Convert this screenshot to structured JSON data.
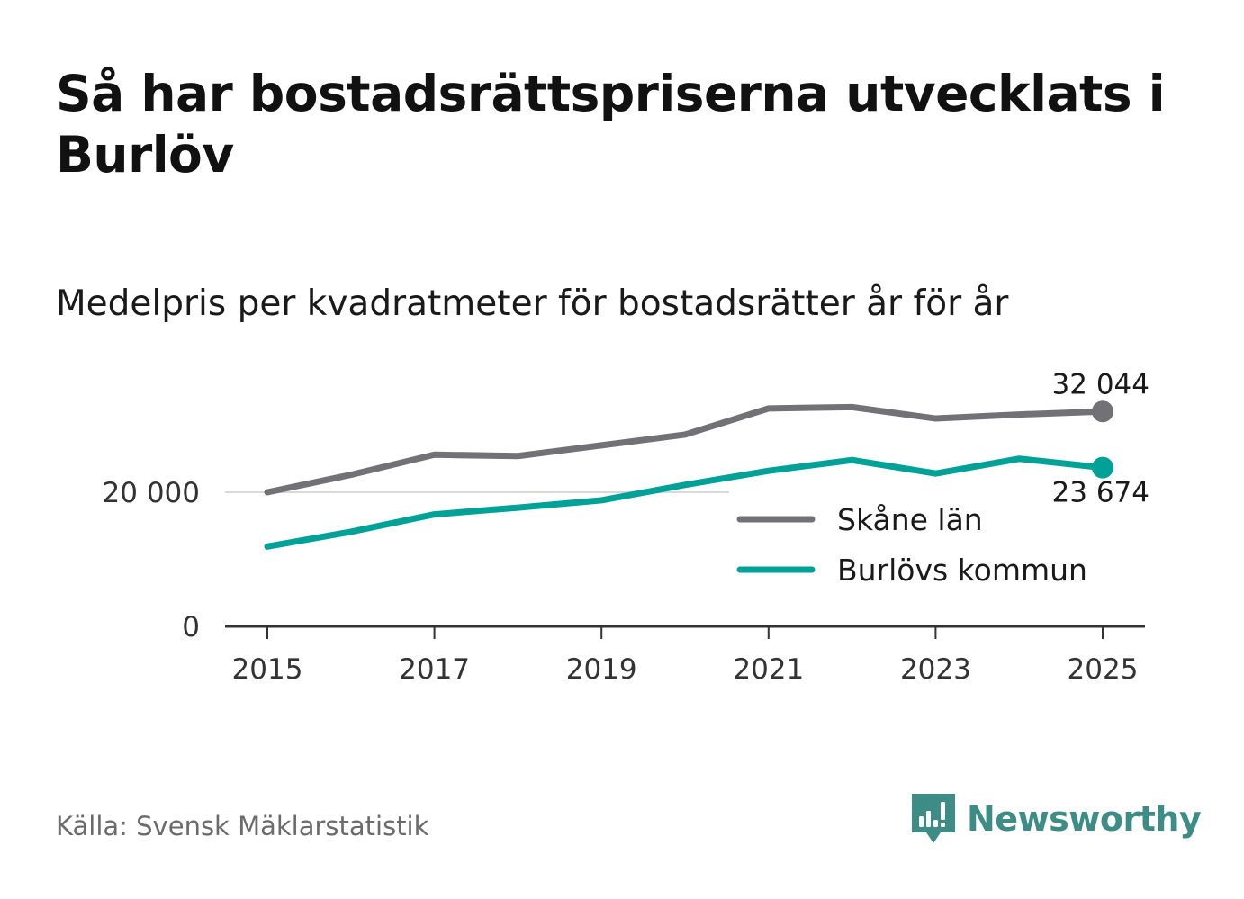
{
  "title": "Så har bostadsrättspriserna utvecklats i Burlöv",
  "subtitle": "Medelpris per kvadratmeter för bostadsrätter år för år",
  "source": "Källa: Svensk Mäklarstatistik",
  "brand": {
    "name": "Newsworthy",
    "icon": "newsworthy-logo-icon",
    "color": "#3e8c86"
  },
  "chart_data": {
    "type": "line",
    "title": "Så har bostadsrättspriserna utvecklats i Burlöv",
    "subtitle": "Medelpris per kvadratmeter för bostadsrätter år för år",
    "x": [
      2015,
      2016,
      2017,
      2018,
      2019,
      2020,
      2021,
      2022,
      2023,
      2024,
      2025
    ],
    "xticks": [
      2015,
      2017,
      2019,
      2021,
      2023,
      2025
    ],
    "xtick_labels": [
      "2015",
      "2017",
      "2019",
      "2021",
      "2023",
      "2025"
    ],
    "yticks": [
      0,
      20000
    ],
    "ytick_labels": [
      "0",
      "20 000"
    ],
    "ylim": [
      0,
      35000
    ],
    "xlabel": "",
    "ylabel": "",
    "legend_position": "right",
    "series": [
      {
        "name": "Skåne län",
        "color": "#727175",
        "values": [
          20000,
          22600,
          25600,
          25400,
          27000,
          28600,
          32500,
          32700,
          31000,
          31600,
          32044
        ],
        "end_label": "32 044"
      },
      {
        "name": "Burlövs kommun",
        "color": "#00a196",
        "values": [
          11900,
          14100,
          16700,
          17700,
          18800,
          21100,
          23200,
          24800,
          22800,
          25000,
          23674
        ],
        "end_label": "23 674"
      }
    ]
  }
}
